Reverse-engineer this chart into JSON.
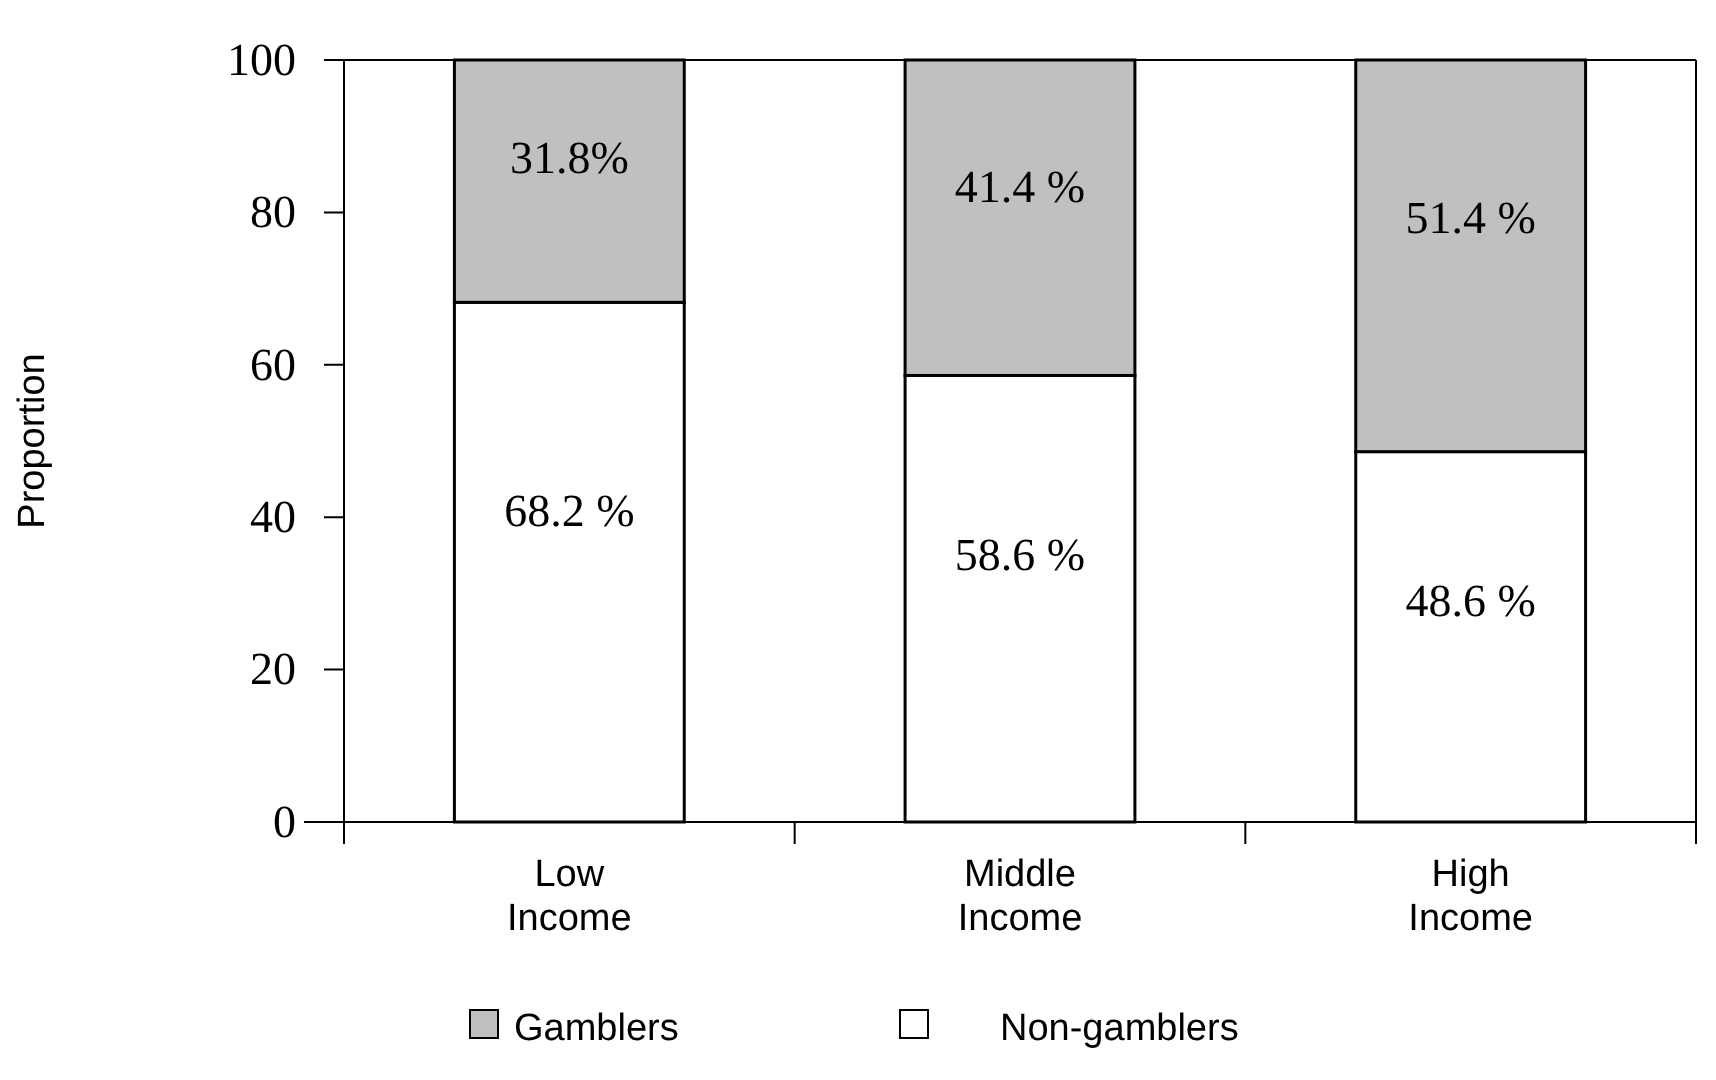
{
  "chart_data": {
    "type": "bar",
    "stacked": true,
    "ylabel": "Proportion",
    "categories": [
      "Low Income",
      "Middle Income",
      "High Income"
    ],
    "series": [
      {
        "name": "Non-gamblers",
        "color": "#ffffff",
        "values": [
          68.2,
          58.6,
          48.6
        ],
        "value_labels": [
          "68.2 %",
          "58.6 %",
          "48.6 %"
        ]
      },
      {
        "name": "Gamblers",
        "color": "#c0c0c0",
        "values": [
          31.8,
          41.4,
          51.4
        ],
        "value_labels": [
          "31.8%",
          "41.4 %",
          "51.4 %"
        ]
      }
    ],
    "ylim": [
      0,
      100
    ],
    "yticks": [
      0,
      20,
      40,
      60,
      80,
      100
    ],
    "legend": "bottom",
    "grid": false
  }
}
